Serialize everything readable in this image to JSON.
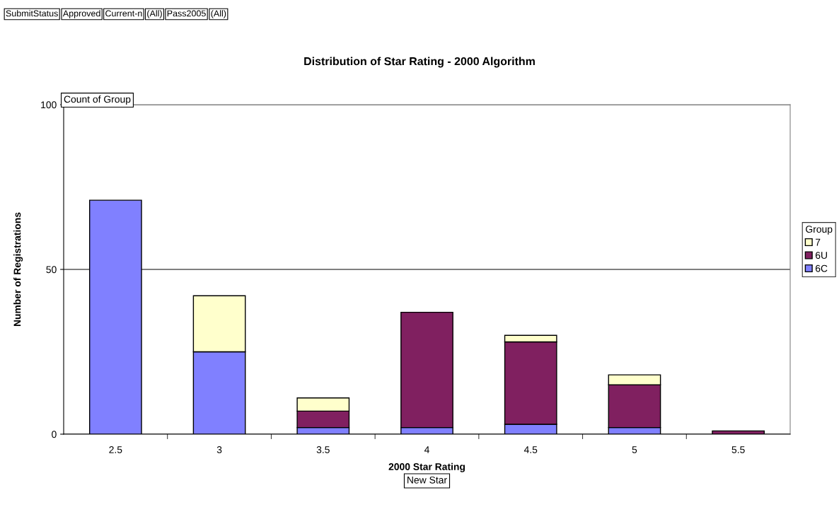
{
  "chart_data": {
    "type": "bar",
    "title": "Distribution of Star Rating - 2000 Algorithm",
    "xlabel": "2000 Star Rating",
    "ylabel": "Number of Registrations",
    "legend_title": "Group",
    "categories": [
      "2.5",
      "3",
      "3.5",
      "4",
      "4.5",
      "5",
      "5.5"
    ],
    "stacked": true,
    "series": [
      {
        "name": "6C",
        "color": "#8080ff",
        "values": [
          71,
          25,
          2,
          2,
          3,
          2,
          0
        ]
      },
      {
        "name": "6U",
        "color": "#802060",
        "values": [
          0,
          0,
          5,
          35,
          25,
          13,
          1
        ]
      },
      {
        "name": "7",
        "color": "#ffffcc",
        "values": [
          0,
          17,
          4,
          0,
          2,
          3,
          0
        ]
      }
    ],
    "ylim": [
      0,
      100
    ],
    "yticks": [
      0,
      50,
      100
    ],
    "grid": "y",
    "legend": "right",
    "annotations": [
      "SubmitStatus",
      "Approved",
      "Current-n",
      "(All)",
      "Pass2005",
      "(All)",
      "Count of Group",
      "New Star"
    ]
  }
}
